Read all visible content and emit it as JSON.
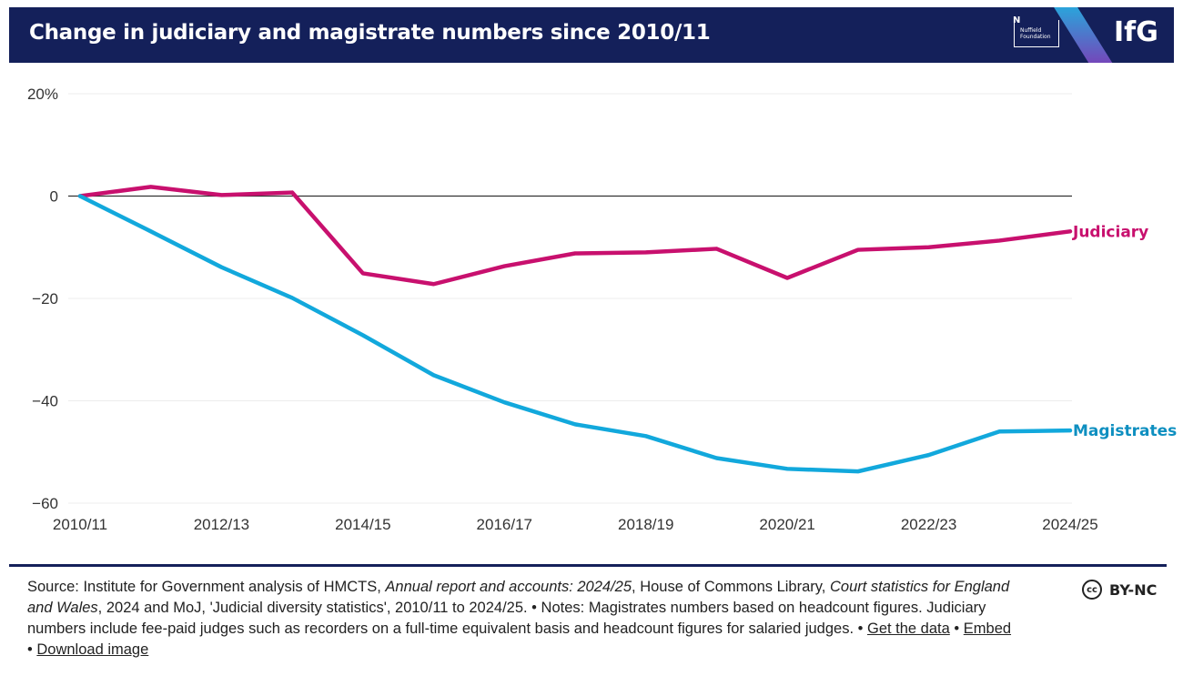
{
  "header": {
    "title": "Change in judiciary and magistrate numbers since 2010/11",
    "partner_logo": "Nuffield Foundation",
    "brand_logo": "IfG",
    "background_color": "#14205a"
  },
  "chart_data": {
    "type": "line",
    "title": "Change in judiciary and magistrate numbers since 2010/11",
    "xlabel": "",
    "ylabel": "",
    "x": [
      "2010/11",
      "2011/12",
      "2012/13",
      "2013/14",
      "2014/15",
      "2015/16",
      "2016/17",
      "2017/18",
      "2018/19",
      "2019/20",
      "2020/21",
      "2021/22",
      "2022/23",
      "2023/24",
      "2024/25"
    ],
    "x_tick_labels": [
      "2010/11",
      "2012/13",
      "2014/15",
      "2016/17",
      "2018/19",
      "2020/21",
      "2022/23",
      "2024/25"
    ],
    "y_tick_labels": [
      "20%",
      "0",
      "−20",
      "−40",
      "−60"
    ],
    "y_ticks": [
      20,
      0,
      -20,
      -40,
      -60
    ],
    "ylim": [
      -60,
      20
    ],
    "grid": true,
    "legend": "direct labels at line ends (right)",
    "series": [
      {
        "name": "Judiciary",
        "color": "#c8106e",
        "values": [
          0,
          1.8,
          0.2,
          0.7,
          -15.1,
          -17.2,
          -13.7,
          -11.2,
          -11.0,
          -10.3,
          -16.0,
          -10.5,
          -10.0,
          -8.7,
          -6.9
        ]
      },
      {
        "name": "Magistrates",
        "color": "#12a8dc",
        "values": [
          0,
          -6.9,
          -13.9,
          -19.9,
          -27.2,
          -35.0,
          -40.3,
          -44.6,
          -46.9,
          -51.2,
          -53.3,
          -53.8,
          -50.6,
          -46.0,
          -45.8
        ]
      }
    ]
  },
  "footer": {
    "source_1": "Source: Institute for Government analysis of HMCTS, ",
    "source_2": "Annual report and accounts: 2024/25",
    "source_3": ", House of Commons Library, ",
    "source_4": "Court statistics for England and Wales",
    "source_5": ", 2024 and MoJ, 'Judicial diversity statistics', 2010/11 to 2024/25. • Notes: Magistrates numbers based on headcount figures. Judiciary numbers include fee-paid judges such as recorders on a full-time equivalent basis and headcount figures for salaried judges. • ",
    "link_data": "Get the data",
    "sep": " • ",
    "link_embed": "Embed",
    "sep2": " • ",
    "link_download": "Download image",
    "license": "BY-NC",
    "license_icon": "cc"
  }
}
